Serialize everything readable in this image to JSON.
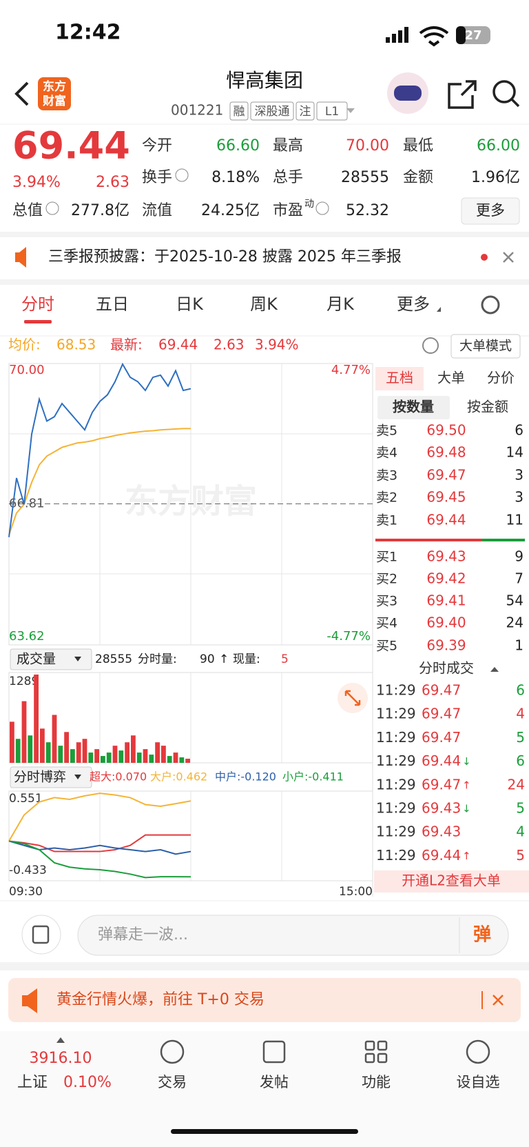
{
  "status_bar": {
    "time": "12:42",
    "battery": "27"
  },
  "header": {
    "logo": [
      "东方",
      "财富"
    ],
    "title": "悍高集团",
    "code": "001221",
    "tags": [
      "融",
      "深股通",
      "注",
      "L1"
    ]
  },
  "quote": {
    "price": "69.44",
    "change_pct": "3.94%",
    "change": "2.63",
    "stats": [
      {
        "label": "今开",
        "value": "66.60",
        "color": "#1a9e3a"
      },
      {
        "label": "最高",
        "value": "70.00",
        "color": "#e4393c"
      },
      {
        "label": "最低",
        "value": "66.00",
        "color": "#1a9e3a"
      },
      {
        "label": "换手",
        "value": "8.18%",
        "color": "#222"
      },
      {
        "label": "总手",
        "value": "28555",
        "color": "#222"
      },
      {
        "label": "金额",
        "value": "1.96亿",
        "color": "#222"
      },
      {
        "label": "总值",
        "value": "277.8亿",
        "color": "#222"
      },
      {
        "label": "流值",
        "value": "24.25亿",
        "color": "#222"
      },
      {
        "label": "市盈",
        "sup": "动",
        "value": "52.32",
        "color": "#222"
      }
    ],
    "more": "更多"
  },
  "notice": "三季报预披露：于2025-10-28 披露 2025 年三季报",
  "tabs": [
    "分时",
    "五日",
    "日K",
    "周K",
    "月K",
    "更多"
  ],
  "info": {
    "avg_label": "均价:",
    "avg": "68.53",
    "last_label": "最新:",
    "last": "69.44",
    "change": "2.63",
    "pct": "3.94%",
    "mode": "大单模式"
  },
  "chart_data": [
    {
      "type": "line",
      "ylim": [
        63.62,
        70.0
      ],
      "yticks": [
        {
          "value": 70,
          "label": "70.00"
        },
        {
          "value": 66.81,
          "label": "66.81"
        },
        {
          "value": 63.62,
          "label": "63.62"
        }
      ],
      "y2lim": [
        -4.77,
        4.77
      ],
      "y2ticks": [
        {
          "value": 4.77,
          "label": "4.77%"
        },
        {
          "value": -4.77,
          "label": "-4.77%"
        }
      ],
      "watermark": "东方财富",
      "series": [
        {
          "color": "#2e6fc1",
          "values": [
            66.05,
            67.4,
            66.8,
            68.4,
            69.2,
            68.7,
            68.8,
            69.1,
            68.9,
            68.7,
            68.5,
            68.9,
            69.15,
            69.3,
            69.6,
            70.0,
            69.7,
            69.6,
            69.4,
            69.7,
            69.75,
            69.5,
            69.85,
            69.4,
            69.44
          ]
        },
        {
          "color": "#f5b335",
          "values": [
            66.1,
            66.6,
            66.8,
            67.3,
            67.7,
            67.9,
            68.0,
            68.1,
            68.15,
            68.2,
            68.22,
            68.25,
            68.3,
            68.33,
            68.37,
            68.4,
            68.43,
            68.45,
            68.47,
            68.48,
            68.5,
            68.51,
            68.52,
            68.53,
            68.53
          ]
        }
      ]
    },
    {
      "type": "bar",
      "label": "成交量",
      "total": "28555",
      "minute_label": "分时量:",
      "minute": "90",
      "arrow": "↑",
      "current_label": "现量:",
      "current": "5",
      "ylim": [
        0,
        1289
      ],
      "yticks": [
        1289
      ],
      "values": [
        600,
        350,
        900,
        400,
        1289,
        500,
        300,
        700,
        250,
        450,
        200,
        300,
        350,
        150,
        200,
        100,
        150,
        250,
        180,
        300,
        400,
        150,
        200,
        120,
        300,
        250,
        100,
        150,
        80,
        60
      ],
      "colors": [
        "#e4393c",
        "#1a9e3a",
        "#e4393c",
        "#1a9e3a",
        "#e4393c",
        "#e4393c",
        "#1a9e3a",
        "#e4393c",
        "#1a9e3a",
        "#e4393c",
        "#1a9e3a",
        "#e4393c",
        "#e4393c",
        "#1a9e3a",
        "#e4393c",
        "#1a9e3a",
        "#1a9e3a",
        "#e4393c",
        "#1a9e3a",
        "#e4393c",
        "#e4393c",
        "#1a9e3a",
        "#e4393c",
        "#1a9e3a",
        "#e4393c",
        "#e4393c",
        "#1a9e3a",
        "#e4393c",
        "#1a9e3a",
        "#e4393c"
      ]
    },
    {
      "type": "line",
      "label": "分时博弈",
      "ylim": [
        -0.433,
        0.551
      ],
      "yticks": [
        0.551,
        -0.433
      ],
      "xticks": [
        "09:30",
        "15:00"
      ],
      "series": [
        {
          "label": "超大:0.070",
          "color": "#e4393c",
          "values": [
            0,
            -0.02,
            -0.05,
            -0.12,
            -0.12,
            -0.12,
            -0.12,
            -0.1,
            -0.05,
            0.07,
            0.07,
            0.07,
            0.07
          ]
        },
        {
          "label": "大户:0.462",
          "color": "#f5b335",
          "values": [
            0,
            0.3,
            0.45,
            0.5,
            0.48,
            0.52,
            0.55,
            0.53,
            0.5,
            0.42,
            0.4,
            0.43,
            0.462
          ]
        },
        {
          "label": "中户:-0.120",
          "color": "#2d5fa8",
          "values": [
            0,
            -0.05,
            -0.1,
            -0.08,
            -0.1,
            -0.08,
            -0.05,
            -0.08,
            -0.1,
            -0.12,
            -0.1,
            -0.15,
            -0.12
          ]
        },
        {
          "label": "小户:-0.411",
          "color": "#1a9e3a",
          "values": [
            0,
            -0.03,
            -0.1,
            -0.25,
            -0.3,
            -0.32,
            -0.33,
            -0.35,
            -0.38,
            -0.42,
            -0.41,
            -0.41,
            -0.411
          ]
        }
      ]
    }
  ],
  "order_book": {
    "tabs": [
      "五档",
      "大单",
      "分价"
    ],
    "subtabs": [
      "按数量",
      "按金额"
    ],
    "asks": [
      {
        "label": "卖5",
        "price": "69.50",
        "volume": "6"
      },
      {
        "label": "卖4",
        "price": "69.48",
        "volume": "14"
      },
      {
        "label": "卖3",
        "price": "69.47",
        "volume": "3"
      },
      {
        "label": "卖2",
        "price": "69.45",
        "volume": "3"
      },
      {
        "label": "卖1",
        "price": "69.44",
        "volume": "11"
      }
    ],
    "bids": [
      {
        "label": "买1",
        "price": "69.43",
        "volume": "9"
      },
      {
        "label": "买2",
        "price": "69.42",
        "volume": "7"
      },
      {
        "label": "买3",
        "price": "69.41",
        "volume": "54"
      },
      {
        "label": "买4",
        "price": "69.40",
        "volume": "24"
      },
      {
        "label": "买5",
        "price": "69.39",
        "volume": "1"
      }
    ],
    "trades_title": "分时成交",
    "trades": [
      {
        "time": "11:29",
        "price": "69.47",
        "volume": "6",
        "color": "#1a9e3a"
      },
      {
        "time": "11:29",
        "price": "69.47",
        "volume": "4",
        "color": "#e4393c"
      },
      {
        "time": "11:29",
        "price": "69.47",
        "volume": "5",
        "color": "#1a9e3a"
      },
      {
        "time": "11:29",
        "price": "69.44",
        "dir": "↓",
        "volume": "6",
        "color": "#1a9e3a"
      },
      {
        "time": "11:29",
        "price": "69.47",
        "dir": "↑",
        "volume": "24",
        "color": "#e4393c"
      },
      {
        "time": "11:29",
        "price": "69.43",
        "dir": "↓",
        "volume": "5",
        "color": "#1a9e3a"
      },
      {
        "time": "11:29",
        "price": "69.43",
        "volume": "4",
        "color": "#1a9e3a"
      },
      {
        "time": "11:29",
        "price": "69.44",
        "dir": "↑",
        "volume": "5",
        "color": "#e4393c"
      }
    ],
    "l2": "开通L2查看大单"
  },
  "comment": {
    "placeholder": "弹幕走一波...",
    "button": "弹"
  },
  "banner": "黄金行情火爆，前往 T+0 交易",
  "nav": {
    "index_value": "3916.10",
    "index_name": "上证",
    "index_pct": "0.10%",
    "items": [
      "交易",
      "发帖",
      "功能",
      "设自选"
    ]
  }
}
